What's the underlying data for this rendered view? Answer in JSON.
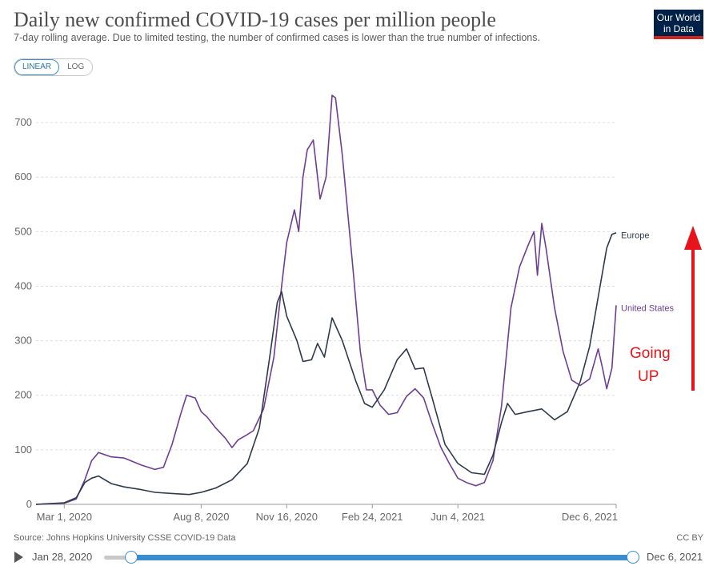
{
  "header": {
    "title": "Daily new confirmed COVID-19 cases per million people",
    "subtitle": "7-day rolling average. Due to limited testing, the number of confirmed cases is lower than the true number of infections.",
    "logo_line1": "Our World",
    "logo_line2": "in Data"
  },
  "scale_toggle": {
    "linear": "LINEAR",
    "log": "LOG",
    "selected": "LINEAR"
  },
  "footer": {
    "source": "Source: Johns Hopkins University CSSE COVID-19 Data",
    "license": "CC BY"
  },
  "timeline": {
    "start": "Jan 28, 2020",
    "end": "Dec 6, 2021"
  },
  "annotation": {
    "line1": "Going",
    "line2": "UP",
    "color": "#e8141b"
  },
  "chart_data": {
    "type": "line",
    "title": "Daily new confirmed COVID-19 cases per million people",
    "subtitle": "7-day rolling average. Due to limited testing, the number of confirmed cases is lower than the true number of infections.",
    "x_range": [
      "2020-01-28",
      "2021-12-06"
    ],
    "x_tick_labels": [
      "Mar 1, 2020",
      "Aug 8, 2020",
      "Nov 16, 2020",
      "Feb 24, 2021",
      "Jun 4, 2021",
      "Dec 6, 2021"
    ],
    "x_tick_dates": [
      "2020-03-01",
      "2020-08-08",
      "2020-11-16",
      "2021-02-24",
      "2021-06-04",
      "2021-12-06"
    ],
    "ylim": [
      0,
      750
    ],
    "y_ticks": [
      0,
      100,
      200,
      300,
      400,
      500,
      600,
      700
    ],
    "grid": "horizontal dashed",
    "series": [
      {
        "name": "United States",
        "color": "#6d3e91",
        "points": [
          [
            "2020-01-28",
            0
          ],
          [
            "2020-03-01",
            2
          ],
          [
            "2020-03-15",
            10
          ],
          [
            "2020-03-25",
            45
          ],
          [
            "2020-04-02",
            80
          ],
          [
            "2020-04-10",
            95
          ],
          [
            "2020-04-25",
            87
          ],
          [
            "2020-05-10",
            85
          ],
          [
            "2020-05-30",
            72
          ],
          [
            "2020-06-15",
            64
          ],
          [
            "2020-06-25",
            68
          ],
          [
            "2020-07-05",
            110
          ],
          [
            "2020-07-15",
            165
          ],
          [
            "2020-07-22",
            200
          ],
          [
            "2020-08-01",
            195
          ],
          [
            "2020-08-08",
            170
          ],
          [
            "2020-08-15",
            160
          ],
          [
            "2020-08-25",
            140
          ],
          [
            "2020-09-05",
            122
          ],
          [
            "2020-09-13",
            104
          ],
          [
            "2020-09-20",
            118
          ],
          [
            "2020-10-01",
            128
          ],
          [
            "2020-10-08",
            135
          ],
          [
            "2020-10-20",
            175
          ],
          [
            "2020-11-01",
            270
          ],
          [
            "2020-11-10",
            400
          ],
          [
            "2020-11-16",
            480
          ],
          [
            "2020-11-25",
            540
          ],
          [
            "2020-11-30",
            500
          ],
          [
            "2020-12-05",
            600
          ],
          [
            "2020-12-10",
            650
          ],
          [
            "2020-12-17",
            668
          ],
          [
            "2020-12-25",
            560
          ],
          [
            "2021-01-01",
            600
          ],
          [
            "2021-01-08",
            750
          ],
          [
            "2021-01-12",
            745
          ],
          [
            "2021-01-20",
            640
          ],
          [
            "2021-02-01",
            440
          ],
          [
            "2021-02-10",
            280
          ],
          [
            "2021-02-17",
            210
          ],
          [
            "2021-02-24",
            210
          ],
          [
            "2021-03-05",
            182
          ],
          [
            "2021-03-15",
            165
          ],
          [
            "2021-03-25",
            168
          ],
          [
            "2021-04-05",
            198
          ],
          [
            "2021-04-15",
            212
          ],
          [
            "2021-04-25",
            195
          ],
          [
            "2021-05-05",
            148
          ],
          [
            "2021-05-15",
            105
          ],
          [
            "2021-05-25",
            75
          ],
          [
            "2021-06-04",
            48
          ],
          [
            "2021-06-14",
            40
          ],
          [
            "2021-06-25",
            34
          ],
          [
            "2021-07-05",
            40
          ],
          [
            "2021-07-15",
            80
          ],
          [
            "2021-07-25",
            180
          ],
          [
            "2021-08-05",
            360
          ],
          [
            "2021-08-15",
            435
          ],
          [
            "2021-08-25",
            475
          ],
          [
            "2021-09-01",
            500
          ],
          [
            "2021-09-05",
            420
          ],
          [
            "2021-09-10",
            515
          ],
          [
            "2021-09-15",
            470
          ],
          [
            "2021-09-25",
            360
          ],
          [
            "2021-10-05",
            280
          ],
          [
            "2021-10-15",
            228
          ],
          [
            "2021-10-25",
            218
          ],
          [
            "2021-11-05",
            230
          ],
          [
            "2021-11-15",
            285
          ],
          [
            "2021-11-20",
            250
          ],
          [
            "2021-11-25",
            212
          ],
          [
            "2021-12-01",
            250
          ],
          [
            "2021-12-06",
            365
          ]
        ]
      },
      {
        "name": "Europe",
        "color": "#2d3a4d",
        "points": [
          [
            "2020-01-28",
            0
          ],
          [
            "2020-03-01",
            3
          ],
          [
            "2020-03-15",
            12
          ],
          [
            "2020-03-25",
            40
          ],
          [
            "2020-04-02",
            48
          ],
          [
            "2020-04-10",
            52
          ],
          [
            "2020-04-25",
            38
          ],
          [
            "2020-05-10",
            32
          ],
          [
            "2020-05-30",
            27
          ],
          [
            "2020-06-15",
            22
          ],
          [
            "2020-07-05",
            20
          ],
          [
            "2020-07-25",
            18
          ],
          [
            "2020-08-08",
            22
          ],
          [
            "2020-08-25",
            30
          ],
          [
            "2020-09-13",
            45
          ],
          [
            "2020-10-01",
            75
          ],
          [
            "2020-10-15",
            140
          ],
          [
            "2020-10-28",
            280
          ],
          [
            "2020-11-05",
            370
          ],
          [
            "2020-11-10",
            390
          ],
          [
            "2020-11-16",
            345
          ],
          [
            "2020-11-28",
            300
          ],
          [
            "2020-12-05",
            262
          ],
          [
            "2020-12-15",
            265
          ],
          [
            "2020-12-22",
            295
          ],
          [
            "2020-12-30",
            270
          ],
          [
            "2021-01-08",
            342
          ],
          [
            "2021-01-20",
            300
          ],
          [
            "2021-02-05",
            225
          ],
          [
            "2021-02-15",
            185
          ],
          [
            "2021-02-24",
            178
          ],
          [
            "2021-03-10",
            210
          ],
          [
            "2021-03-25",
            265
          ],
          [
            "2021-04-05",
            285
          ],
          [
            "2021-04-15",
            248
          ],
          [
            "2021-04-25",
            250
          ],
          [
            "2021-05-05",
            195
          ],
          [
            "2021-05-20",
            110
          ],
          [
            "2021-06-04",
            75
          ],
          [
            "2021-06-20",
            58
          ],
          [
            "2021-07-05",
            55
          ],
          [
            "2021-07-15",
            90
          ],
          [
            "2021-07-25",
            150
          ],
          [
            "2021-08-01",
            185
          ],
          [
            "2021-08-10",
            165
          ],
          [
            "2021-08-25",
            170
          ],
          [
            "2021-09-10",
            175
          ],
          [
            "2021-09-25",
            155
          ],
          [
            "2021-10-10",
            170
          ],
          [
            "2021-10-25",
            225
          ],
          [
            "2021-11-05",
            290
          ],
          [
            "2021-11-15",
            380
          ],
          [
            "2021-11-25",
            470
          ],
          [
            "2021-12-01",
            495
          ],
          [
            "2021-12-06",
            498
          ]
        ]
      }
    ]
  }
}
